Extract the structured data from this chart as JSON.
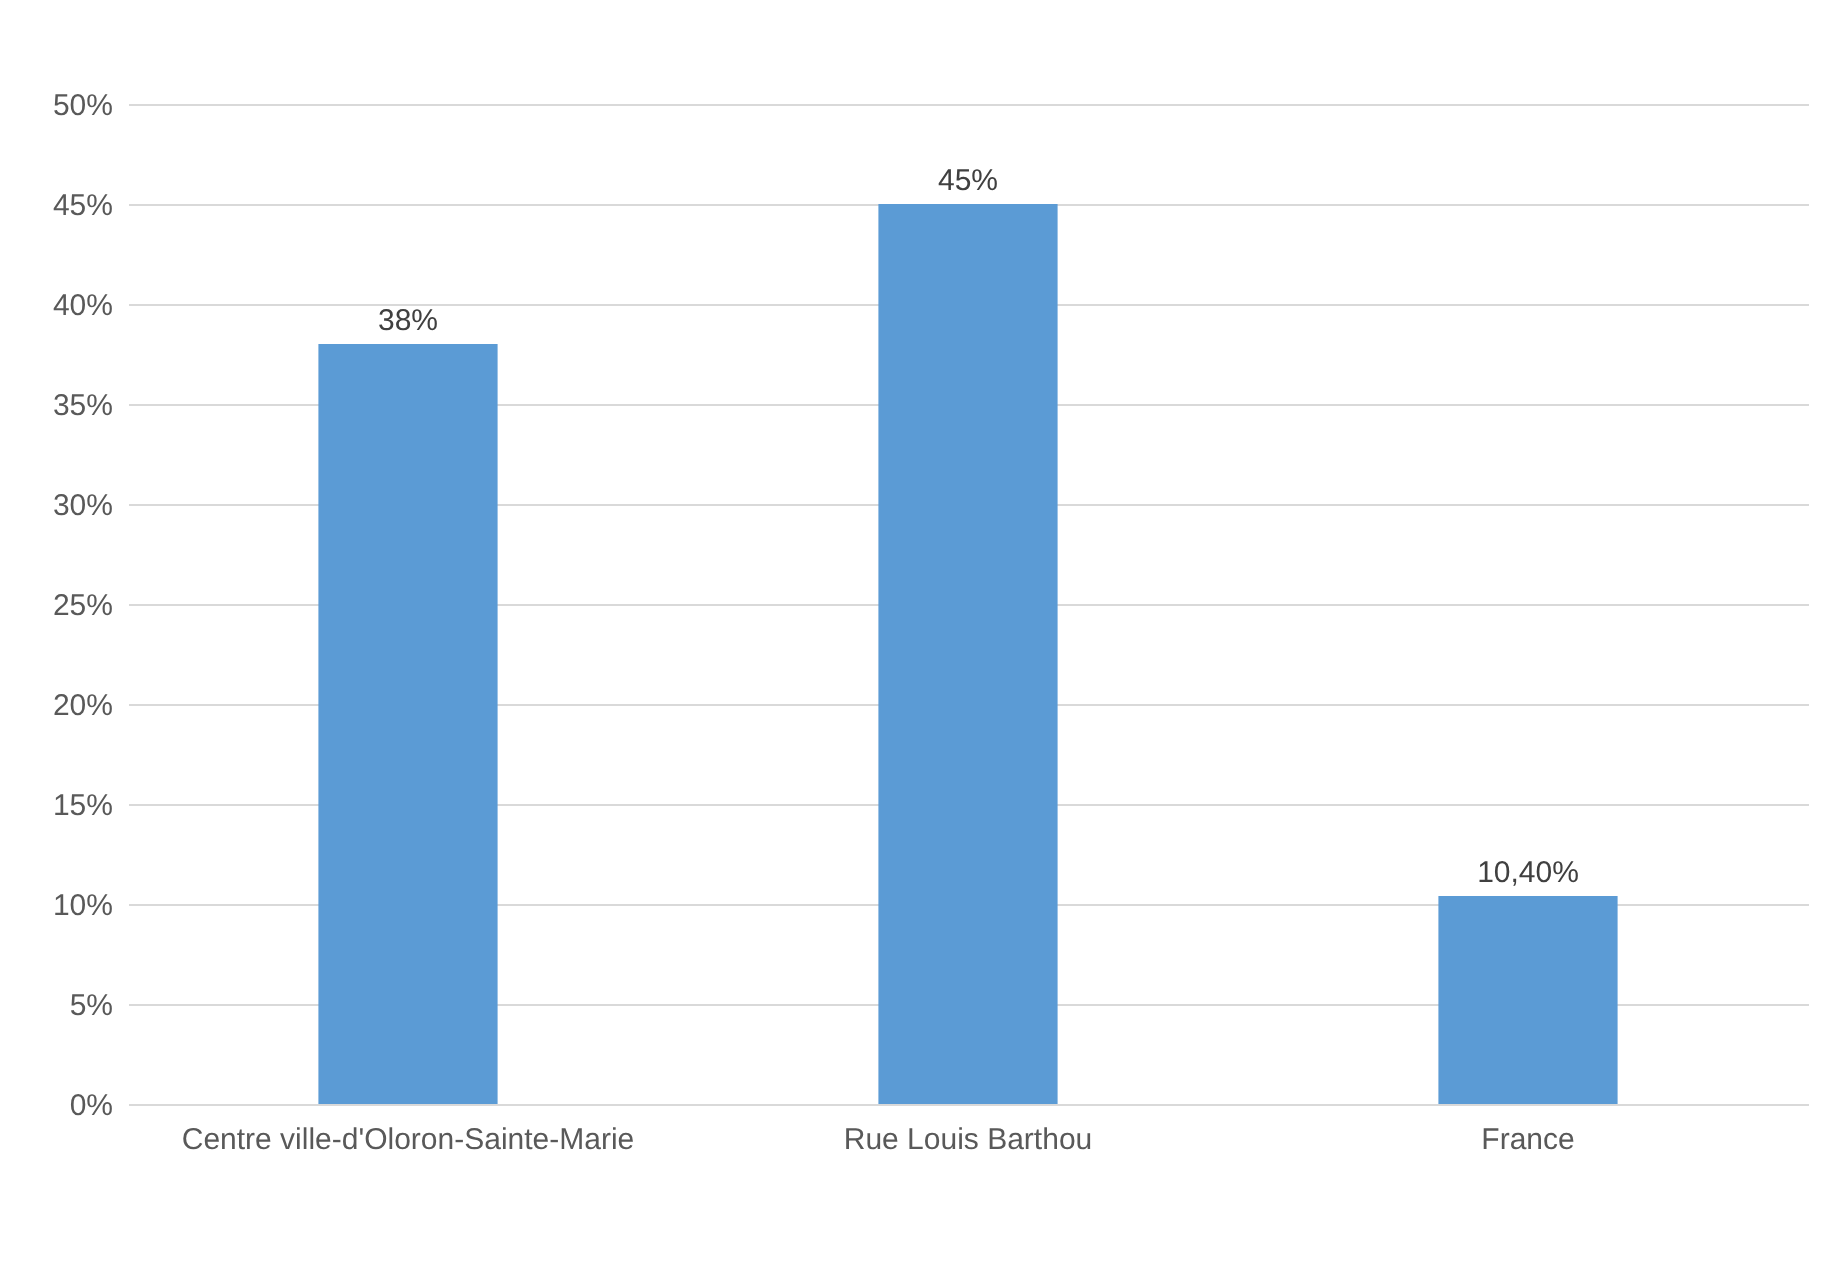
{
  "chart_data": {
    "type": "bar",
    "categories": [
      "Centre ville-d'Oloron-Sainte-Marie",
      "Rue Louis Barthou",
      "France"
    ],
    "values": [
      38,
      45,
      10.4
    ],
    "color": "#5b9bd5",
    "value_labels": [
      "38%",
      "45%",
      "10,40%"
    ],
    "ylim": [
      0,
      50
    ],
    "yticks": [
      {
        "value": 0,
        "label": "0%"
      },
      {
        "value": 5,
        "label": "5%"
      },
      {
        "value": 10,
        "label": "10%"
      },
      {
        "value": 15,
        "label": "15%"
      },
      {
        "value": 20,
        "label": "20%"
      },
      {
        "value": 25,
        "label": "25%"
      },
      {
        "value": 30,
        "label": "30%"
      },
      {
        "value": 35,
        "label": "35%"
      },
      {
        "value": 40,
        "label": "40%"
      },
      {
        "value": 45,
        "label": "45%"
      },
      {
        "value": 50,
        "label": "50%"
      }
    ],
    "grid": "y"
  }
}
